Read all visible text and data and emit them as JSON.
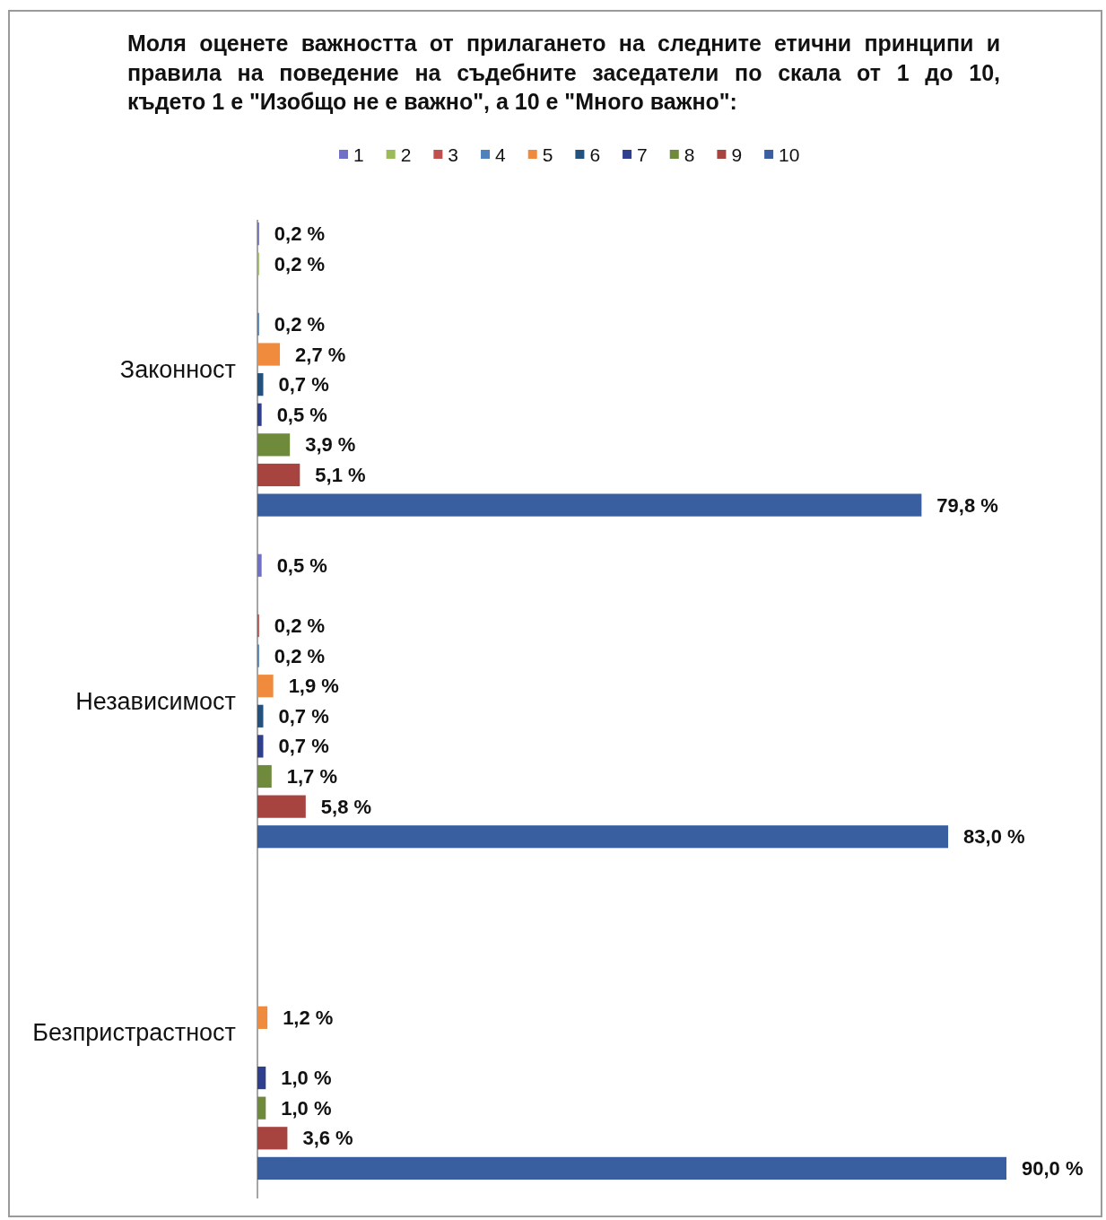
{
  "chart_data": {
    "type": "bar",
    "orientation": "horizontal",
    "title": "Моля оценете важността от прилагането на следните етични принципи и\nправила на поведение на съдебните заседатели по скала от 1 до 10,\nкъдето 1 е \"Изобщо не е важно\", а 10 е \"Много важно\":",
    "categories": [
      "Законност",
      "Независимост",
      "Безпристрастност"
    ],
    "series": [
      {
        "name": "1",
        "color": "#7070c8",
        "values": [
          0.2,
          0.5,
          null
        ],
        "value_labels": [
          "0,2 %",
          "0,5 %",
          null
        ]
      },
      {
        "name": "2",
        "color": "#9bbb59",
        "values": [
          0.2,
          null,
          null
        ],
        "value_labels": [
          "0,2 %",
          null,
          null
        ]
      },
      {
        "name": "3",
        "color": "#c0504d",
        "values": [
          null,
          0.2,
          null
        ],
        "value_labels": [
          null,
          "0,2 %",
          null
        ]
      },
      {
        "name": "4",
        "color": "#4f81bd",
        "values": [
          0.2,
          0.2,
          null
        ],
        "value_labels": [
          "0,2 %",
          "0,2 %",
          null
        ]
      },
      {
        "name": "5",
        "color": "#f08a3c",
        "values": [
          2.7,
          1.9,
          1.2
        ],
        "value_labels": [
          "2,7 %",
          "1,9 %",
          "1,2 %"
        ]
      },
      {
        "name": "6",
        "color": "#24527e",
        "values": [
          0.7,
          0.7,
          null
        ],
        "value_labels": [
          "0,7 %",
          "0,7 %",
          null
        ]
      },
      {
        "name": "7",
        "color": "#2e3f8e",
        "values": [
          0.5,
          0.7,
          1.0
        ],
        "value_labels": [
          "0,5 %",
          "0,7 %",
          "1,0 %"
        ]
      },
      {
        "name": "8",
        "color": "#6e8a3a",
        "values": [
          3.9,
          1.7,
          1.0
        ],
        "value_labels": [
          "3,9 %",
          "1,7 %",
          "1,0 %"
        ]
      },
      {
        "name": "9",
        "color": "#a8443f",
        "values": [
          5.1,
          5.8,
          3.6
        ],
        "value_labels": [
          "5,1 %",
          "5,8 %",
          "3,6 %"
        ]
      },
      {
        "name": "10",
        "color": "#3a5fa0",
        "values": [
          79.8,
          83.0,
          90.0
        ],
        "value_labels": [
          "79,8 %",
          "83,0 %",
          "90,0 %"
        ]
      }
    ],
    "legend": "top"
  }
}
